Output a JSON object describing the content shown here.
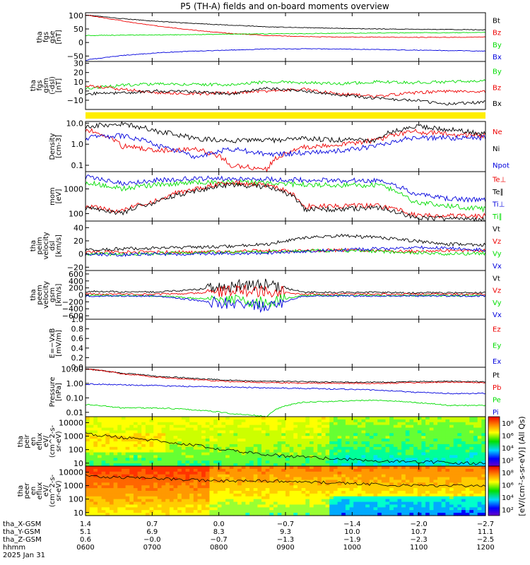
{
  "title": "P5 (TH-A) fields and on-board moments overview",
  "colors": {
    "black": "#000000",
    "red": "#ee0000",
    "green": "#00dd00",
    "blue": "#0000dd",
    "yellow": "#ffee00"
  },
  "chart_data": [
    {
      "id": "fgs_gse",
      "type": "line",
      "ylabel": [
        "tha",
        "fgs",
        "gse",
        "[nT]"
      ],
      "ylim": [
        -70,
        110
      ],
      "yticks": [
        "100",
        "50",
        "0",
        "−50"
      ],
      "ytick_values": [
        100,
        50,
        0,
        -50
      ],
      "legend": [
        "Bt",
        "Bz",
        "By",
        "Bx"
      ],
      "legend_colors": [
        "black",
        "red",
        "green",
        "blue"
      ],
      "series": [
        {
          "name": "Bt",
          "color": "black",
          "values": [
            102,
            88,
            78,
            70,
            64,
            58,
            55,
            52,
            50,
            49,
            48,
            47
          ]
        },
        {
          "name": "Bz",
          "color": "red",
          "values": [
            102,
            80,
            60,
            45,
            33,
            26,
            22,
            20,
            20,
            19,
            19,
            20
          ]
        },
        {
          "name": "By",
          "color": "green",
          "values": [
            26,
            27,
            28,
            29,
            31,
            32,
            33,
            34,
            35,
            36,
            36,
            37
          ]
        },
        {
          "name": "Bx",
          "color": "blue",
          "values": [
            -65,
            -48,
            -38,
            -32,
            -28,
            -24,
            -23,
            -24,
            -26,
            -28,
            -30,
            -32
          ]
        }
      ]
    },
    {
      "id": "fgs_gsm",
      "type": "line",
      "ylabel": [
        "tha",
        "fgs",
        "gsm",
        "(-dsl)",
        "[nT]"
      ],
      "ylim": [
        -20,
        32
      ],
      "yticks": [
        "30",
        "20",
        "10",
        "0",
        "−10"
      ],
      "ytick_values": [
        30,
        20,
        10,
        0,
        -10
      ],
      "legend": [
        "By",
        "Bz",
        "Bx"
      ],
      "legend_colors": [
        "green",
        "red",
        "black"
      ],
      "series": [
        {
          "name": "By",
          "color": "green",
          "values": [
            3,
            6,
            8,
            7,
            7,
            10,
            9,
            8,
            10,
            9,
            10,
            11
          ]
        },
        {
          "name": "Bz",
          "color": "red",
          "values": [
            6,
            2,
            -2,
            -3,
            -2,
            0,
            2,
            -3,
            -6,
            -2,
            0,
            -1
          ]
        },
        {
          "name": "Bx",
          "color": "black",
          "values": [
            -3,
            -2,
            0,
            -1,
            -3,
            3,
            0,
            -4,
            -8,
            -10,
            -14,
            -12
          ]
        }
      ]
    },
    {
      "id": "density",
      "type": "line",
      "yscale": "log",
      "ylabel": [
        "Density",
        "[cm-3]"
      ],
      "ylim": [
        0.05,
        12
      ],
      "yticks": [
        "10.0",
        "1.0",
        "0.1"
      ],
      "ytick_values": [
        10,
        1,
        0.1
      ],
      "legend": [
        "Ne",
        "Ni",
        "Npot"
      ],
      "legend_colors": [
        "red",
        "black",
        "blue"
      ],
      "series": [
        {
          "name": "Ne",
          "color": "red",
          "values": [
            5,
            0.8,
            0.5,
            0.6,
            0.1,
            0.06,
            0.7,
            1,
            1.5,
            4,
            3,
            2.5
          ]
        },
        {
          "name": "Ni",
          "color": "black",
          "values": [
            7,
            9,
            4,
            1.8,
            1.5,
            1.5,
            1.8,
            1.6,
            1.5,
            7,
            5,
            3
          ]
        },
        {
          "name": "Npot",
          "color": "blue",
          "values": [
            2,
            2.5,
            0.8,
            0.2,
            0.6,
            0.3,
            0.4,
            0.5,
            0.8,
            2,
            2,
            2
          ]
        }
      ]
    },
    {
      "id": "temperature",
      "type": "line",
      "yscale": "log",
      "ylabel": [
        "mom",
        "[eV]"
      ],
      "ylim": [
        50,
        5000
      ],
      "yticks": [
        "1000",
        "100"
      ],
      "ytick_values": [
        1000,
        100
      ],
      "legend": [
        "Te⊥",
        "Te∥",
        "Ti⊥",
        "Ti∥"
      ],
      "legend_colors": [
        "red",
        "black",
        "blue",
        "green"
      ],
      "series": [
        {
          "name": "Ti⊥",
          "color": "blue",
          "values": [
            3000,
            1700,
            2300,
            2600,
            2700,
            2500,
            2300,
            2200,
            2200,
            600,
            400,
            350
          ]
        },
        {
          "name": "Ti∥",
          "color": "green",
          "values": [
            1800,
            1000,
            1500,
            1800,
            1900,
            1700,
            1500,
            1400,
            1400,
            300,
            200,
            150
          ]
        },
        {
          "name": "Te⊥",
          "color": "red",
          "values": [
            200,
            120,
            350,
            1000,
            1800,
            1400,
            200,
            200,
            220,
            90,
            80,
            80
          ]
        },
        {
          "name": "Te∥",
          "color": "black",
          "values": [
            170,
            100,
            300,
            800,
            1500,
            1200,
            150,
            150,
            180,
            70,
            60,
            60
          ]
        }
      ]
    },
    {
      "id": "peim_dsl",
      "type": "line",
      "ylabel": [
        "tha",
        "peim",
        "velocity",
        "dsl",
        "[km/s]"
      ],
      "ylim": [
        -25,
        50
      ],
      "yticks": [
        "40",
        "20",
        "0",
        "−20"
      ],
      "ytick_values": [
        40,
        20,
        0,
        -20
      ],
      "legend": [
        "Vt",
        "Vz",
        "Vy",
        "Vx"
      ],
      "legend_colors": [
        "black",
        "red",
        "green",
        "blue"
      ],
      "series": [
        {
          "name": "Vt",
          "color": "black",
          "values": [
            6,
            8,
            9,
            10,
            12,
            15,
            25,
            28,
            25,
            20,
            15,
            14
          ]
        },
        {
          "name": "Vz",
          "color": "red",
          "values": [
            2,
            3,
            3,
            3,
            4,
            5,
            5,
            6,
            5,
            4,
            5,
            5
          ]
        },
        {
          "name": "Vy",
          "color": "green",
          "values": [
            0,
            0,
            1,
            2,
            3,
            3,
            5,
            5,
            4,
            2,
            0,
            1
          ]
        },
        {
          "name": "Vx",
          "color": "blue",
          "values": [
            0,
            -1,
            0,
            0,
            1,
            2,
            4,
            6,
            8,
            10,
            9,
            6
          ]
        }
      ]
    },
    {
      "id": "peem_gsm",
      "type": "line",
      "ylabel": [
        "tha",
        "peem",
        "velocity",
        "gsm",
        "[km/s]"
      ],
      "ylim": [
        -700,
        700
      ],
      "yticks": [
        "600",
        "400",
        "200",
        "0",
        "−200",
        "−400",
        "−600"
      ],
      "ytick_values": [
        600,
        400,
        200,
        0,
        -200,
        -400,
        -600
      ],
      "legend": [
        "Vt",
        "Vz",
        "Vy",
        "Vx"
      ],
      "legend_colors": [
        "black",
        "red",
        "green",
        "blue"
      ],
      "series": [
        {
          "name": "Vt",
          "color": "black",
          "values": [
            100,
            90,
            80,
            150,
            250,
            300,
            80,
            70,
            70,
            60,
            60,
            60
          ]
        },
        {
          "name": "Vz",
          "color": "red",
          "values": [
            30,
            20,
            20,
            50,
            100,
            120,
            20,
            20,
            20,
            20,
            20,
            20
          ]
        },
        {
          "name": "Vy",
          "color": "green",
          "values": [
            -20,
            -20,
            -30,
            -100,
            -150,
            -200,
            -20,
            -20,
            -20,
            -20,
            -20,
            -20
          ]
        },
        {
          "name": "Vx",
          "color": "blue",
          "values": [
            -40,
            -30,
            -40,
            -150,
            -250,
            -350,
            -30,
            -30,
            -30,
            -30,
            -30,
            -30
          ]
        }
      ]
    },
    {
      "id": "efield",
      "type": "line",
      "ylabel": [
        "E=−VxB",
        "[mV/m]"
      ],
      "ylim": [
        0,
        1
      ],
      "yticks": [
        "1.0",
        "0.8",
        "0.6",
        "0.4",
        "0.2",
        "0.0"
      ],
      "ytick_values": [
        1,
        0.8,
        0.6,
        0.4,
        0.2,
        0
      ],
      "legend": [
        "Ez",
        "Ey",
        "Ex"
      ],
      "legend_colors": [
        "red",
        "green",
        "blue"
      ],
      "series": []
    },
    {
      "id": "pressure",
      "type": "line",
      "yscale": "log",
      "ylabel": [
        "Pressure",
        "[nPa]"
      ],
      "ylim": [
        0.005,
        13
      ],
      "yticks": [
        "10.00",
        "1.00",
        "0.10",
        "0.01"
      ],
      "ytick_values": [
        10,
        1,
        0.1,
        0.01
      ],
      "legend": [
        "Pt",
        "Pb",
        "Pe",
        "Pi"
      ],
      "legend_colors": [
        "black",
        "red",
        "green",
        "blue"
      ],
      "series": [
        {
          "name": "Pt",
          "color": "black",
          "values": [
            10,
            5,
            3,
            2.2,
            1.6,
            1.4,
            1.3,
            1.2,
            1.2,
            1.3,
            1.4,
            1.3
          ]
        },
        {
          "name": "Pb",
          "color": "red",
          "values": [
            10,
            4.5,
            2.6,
            1.8,
            1.3,
            1.1,
            1.05,
            1.0,
            1.0,
            1.1,
            1.2,
            1.15
          ]
        },
        {
          "name": "Pe",
          "color": "green",
          "values": [
            0.035,
            0.02,
            0.02,
            0.015,
            0.008,
            0.005,
            0.05,
            0.06,
            0.07,
            0.05,
            0.03,
            0.03
          ]
        },
        {
          "name": "Pi",
          "color": "blue",
          "values": [
            0.9,
            0.8,
            0.7,
            0.6,
            0.55,
            0.5,
            0.45,
            0.4,
            0.35,
            0.25,
            0.2,
            0.2
          ]
        }
      ]
    },
    {
      "id": "peir",
      "type": "heatmap",
      "ylabel": [
        "tha",
        "peir",
        "en",
        "eflux",
        "eV/",
        "(cm^2-s-",
        "sr-eV)"
      ],
      "yscale": "log",
      "ylim": [
        6,
        28000
      ],
      "yticks": [
        "10000",
        "1000",
        "100",
        "10"
      ],
      "ytick_values": [
        10000,
        1000,
        100,
        10
      ],
      "colorbar": {
        "ticks": [
          "10⁸",
          "10⁶",
          "10⁴",
          "10²"
        ]
      }
    },
    {
      "id": "peer",
      "type": "heatmap",
      "ylabel": [
        "tha",
        "peer",
        "en",
        "eflux",
        "eV/",
        "(cm^2-s-",
        "sr-eV)"
      ],
      "yscale": "log",
      "ylim": [
        6,
        28000
      ],
      "yticks": [
        "10000",
        "1000",
        "100",
        "10"
      ],
      "ytick_values": [
        10000,
        1000,
        100,
        10
      ],
      "colorbar": {
        "ticks": [
          "10⁸",
          "10⁶",
          "10⁴",
          "10²"
        ]
      }
    }
  ],
  "colorbar_label": "[eV/(cm²-s-sr-eV)] (All Qs)",
  "xaxis": {
    "row_labels": [
      "tha_X-GSM",
      "tha_Y-GSM",
      "tha_Z-GSM",
      "hhmm",
      "2025 Jan 31"
    ],
    "rows": [
      [
        "1.4",
        "0.7",
        "0.0",
        "−0.7",
        "−1.4",
        "−2.0",
        "−2.7"
      ],
      [
        "5.1",
        "6.9",
        "8.3",
        "9.3",
        "10.0",
        "10.7",
        "11.1"
      ],
      [
        "0.6",
        "−0.0",
        "−0.7",
        "−1.3",
        "−1.9",
        "−2.3",
        "−2.5"
      ],
      [
        "0600",
        "0700",
        "0800",
        "0900",
        "1000",
        "1100",
        "1200"
      ]
    ]
  }
}
